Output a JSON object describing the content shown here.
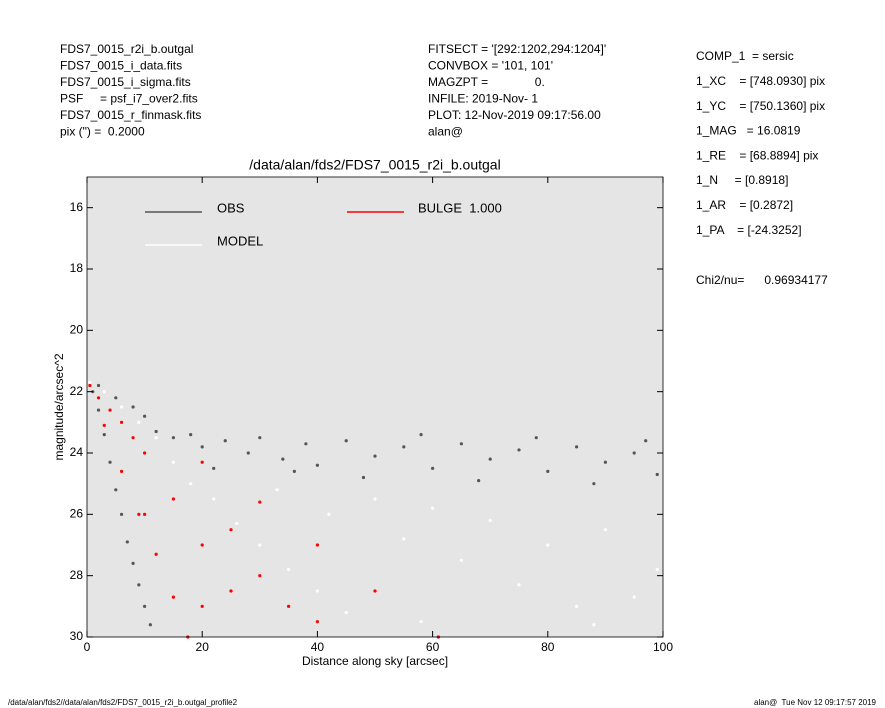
{
  "header_left": [
    "FDS7_0015_r2i_b.outgal",
    "FDS7_0015_i_data.fits",
    "FDS7_0015_i_sigma.fits",
    "PSF     = psf_i7_over2.fits",
    "FDS7_0015_r_finmask.fits",
    "pix (\") =  0.2000"
  ],
  "header_middle": [
    "FITSECT = '[292:1202,294:1204]'",
    "CONVBOX = '101, 101'",
    "MAGZPT =              0.",
    "INFILE: 2019-Nov- 1",
    "PLOT: 12-Nov-2019 09:17:56.00",
    "alan@"
  ],
  "params": [
    "COMP_1  = sersic",
    "1_XC    = [748.0930] pix",
    "1_YC    = [750.1360] pix",
    "1_MAG   = 16.0819",
    "1_RE    = [68.8894] pix",
    "1_N     = [0.8918]",
    "1_AR    = [0.2872]",
    "1_PA    = [-24.3252]"
  ],
  "chi2": "Chi2/nu=      0.96934177",
  "footer_left": "/data/alan/fds2//data/alan/fds2/FDS7_0015_r2i_b.outgal_profile2",
  "footer_right": "alan@  Tue Nov 12 09:17:57 2019",
  "chart_data": {
    "type": "scatter",
    "title": "/data/alan/fds2/FDS7_0015_r2i_b.outgal",
    "xlabel": "Distance along sky [arcsec]",
    "ylabel": "magnitude/arcsec^2",
    "xlim": [
      0,
      100
    ],
    "ylim": [
      30,
      15
    ],
    "xticks": [
      0,
      20,
      40,
      60,
      80,
      100
    ],
    "yticks": [
      16,
      18,
      20,
      22,
      24,
      26,
      28,
      30
    ],
    "background": "#e5e5e5",
    "series": [
      {
        "name": "OBS",
        "color": "#555555",
        "x": [
          1,
          2,
          3,
          4,
          5,
          6,
          7,
          8,
          9,
          10,
          11,
          2,
          5,
          8,
          10,
          12,
          15,
          18,
          20,
          24,
          28,
          30,
          34,
          38,
          40,
          45,
          50,
          55,
          60,
          65,
          70,
          75,
          80,
          85,
          90,
          95,
          99,
          22,
          36,
          48,
          58,
          68,
          78,
          88,
          97
        ],
        "y": [
          22,
          22.6,
          23.4,
          24.3,
          25.2,
          26,
          26.9,
          27.6,
          28.3,
          29,
          29.6,
          21.8,
          22.2,
          22.5,
          22.8,
          23.3,
          23.5,
          23.4,
          23.8,
          23.6,
          24,
          23.5,
          24.2,
          23.7,
          24.4,
          23.6,
          24.1,
          23.8,
          24.5,
          23.7,
          24.2,
          23.9,
          24.6,
          23.8,
          24.3,
          24,
          24.7,
          24.5,
          24.6,
          24.8,
          23.4,
          24.9,
          23.5,
          25,
          23.6
        ]
      },
      {
        "name": "MODEL",
        "color": "#ffffff",
        "x": [
          0.5,
          3,
          6,
          9,
          12,
          15,
          18,
          22,
          26,
          30,
          35,
          40,
          45,
          50,
          55,
          60,
          65,
          70,
          75,
          80,
          85,
          90,
          95,
          99,
          42,
          33,
          58,
          88
        ],
        "y": [
          21.7,
          22,
          22.5,
          23,
          23.5,
          24.3,
          25,
          25.5,
          26.3,
          27,
          27.8,
          28.5,
          29.2,
          25.5,
          26.8,
          25.8,
          27.5,
          26.2,
          28.3,
          27,
          29,
          26.5,
          28.7,
          27.8,
          26,
          25.2,
          29.5,
          29.6
        ]
      },
      {
        "name": "BULGE  1.000",
        "color": "#ff0000",
        "x": [
          0.5,
          2,
          4,
          6,
          8,
          10,
          3,
          6,
          9,
          12,
          15,
          17.5,
          20,
          30,
          40,
          50,
          61,
          10,
          15,
          20,
          25,
          30,
          35,
          40,
          20,
          25
        ],
        "y": [
          21.8,
          22.2,
          22.6,
          23,
          23.5,
          24,
          23.1,
          24.6,
          26,
          27.3,
          28.7,
          30,
          24.3,
          25.6,
          27,
          28.5,
          30,
          26,
          25.5,
          27,
          26.5,
          28,
          29,
          29.5,
          29,
          28.5
        ]
      }
    ]
  }
}
